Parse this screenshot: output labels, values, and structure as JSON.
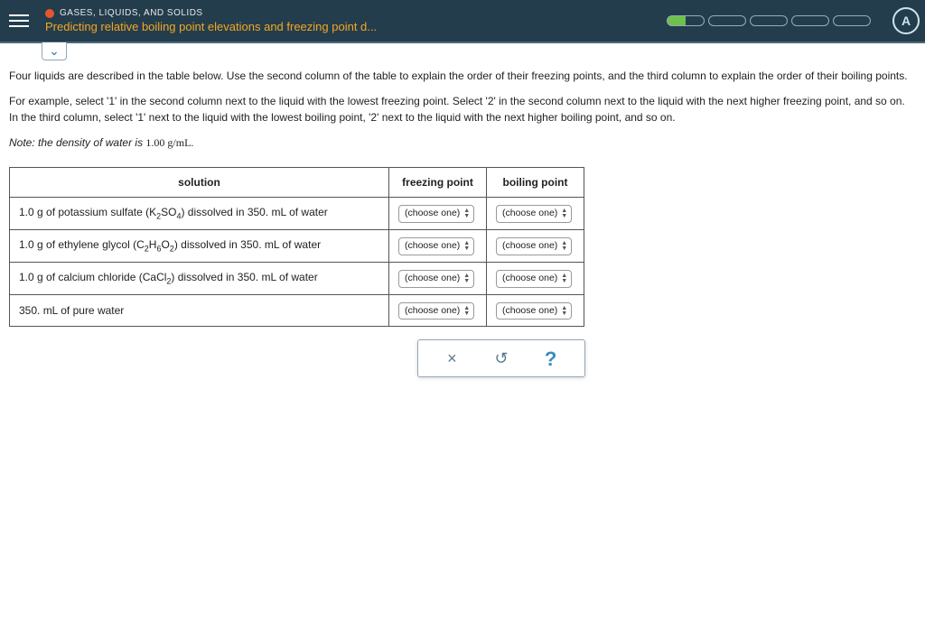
{
  "header": {
    "topic": "GASES, LIQUIDS, AND SOLIDS",
    "subtitle": "Predicting relative boiling point elevations and freezing point d...",
    "account_letter": "A",
    "accent_color": "#e4572e",
    "subtitle_color": "#f5a623",
    "bg_color": "#233d4d",
    "progress_segments": 5,
    "progress_filled_index": 0
  },
  "instructions": {
    "p1": "Four liquids are described in the table below. Use the second column of the table to explain the order of their freezing points, and the third column to explain the order of their boiling points.",
    "p2": "For example, select '1' in the second column next to the liquid with the lowest freezing point. Select '2' in the second column next to the liquid with the next higher freezing point, and so on. In the third column, select '1' next to the liquid with the lowest boiling point, '2' next to the liquid with the next higher boiling point, and so on.",
    "note_prefix": "Note:",
    "note_text": " the density of water is ",
    "note_value": "1.00 g/mL."
  },
  "table": {
    "headers": {
      "solution": "solution",
      "freezing": "freezing point",
      "boiling": "boiling point"
    },
    "select_placeholder": "(choose one)",
    "rows": [
      {
        "html": "1.0 g of potassium sulfate (K<sub>2</sub>SO<sub>4</sub>) dissolved in 350. mL of water"
      },
      {
        "html": "1.0 g of ethylene glycol (C<sub>2</sub>H<sub>6</sub>O<sub>2</sub>) dissolved in 350. mL of water"
      },
      {
        "html": "1.0 g of calcium chloride (CaCl<sub>2</sub>) dissolved in 350. mL of water"
      },
      {
        "html": "350. mL of pure water"
      }
    ]
  },
  "toolbox": {
    "clear": "×",
    "reset": "↺",
    "help": "?"
  }
}
